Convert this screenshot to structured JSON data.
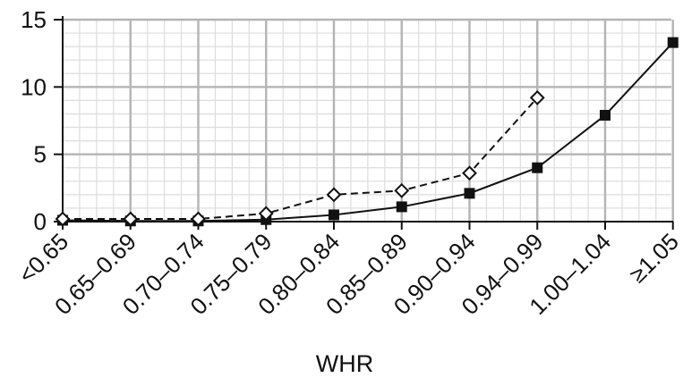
{
  "chart_data": {
    "type": "line",
    "categories": [
      "<0.65",
      "0.65–0.69",
      "0.70–0.74",
      "0.75–0.79",
      "0.80–0.84",
      "0.85–0.89",
      "0.90–0.94",
      "0.94–0.99",
      "1.00–1.04",
      "≥1.05"
    ],
    "series": [
      {
        "marker": "filled-square",
        "line_style": "solid",
        "color": "#111111",
        "values": [
          0.1,
          0.05,
          0.05,
          0.15,
          0.5,
          1.1,
          2.1,
          4.0,
          7.9,
          13.3
        ]
      },
      {
        "marker": "open-diamond",
        "line_style": "dashed",
        "color": "#111111",
        "values": [
          0.2,
          0.2,
          0.2,
          0.6,
          2.0,
          2.3,
          3.6,
          9.2,
          null,
          null
        ]
      }
    ],
    "xlabel": "WHR",
    "ylabel": "",
    "ylim": [
      0,
      15
    ],
    "yticks": [
      0,
      5,
      10,
      15
    ],
    "grid": true,
    "minor_grid": true,
    "legend": "none",
    "colors": {
      "major_grid": "#b4b4b4",
      "minor_grid": "#dcdcdc",
      "axis": "#111111"
    }
  }
}
